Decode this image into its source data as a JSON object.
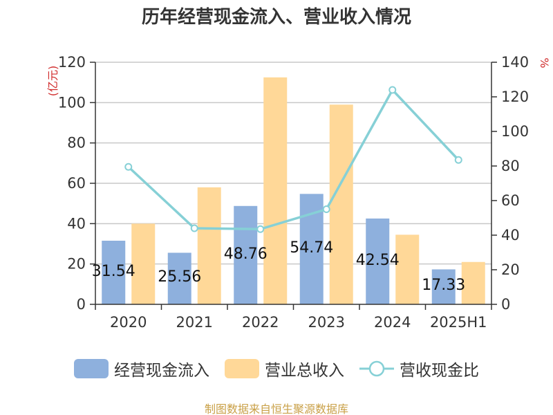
{
  "title": "历年经营现金流入、营业收入情况",
  "source": "制图数据来自恒生聚源数据库",
  "colors": {
    "cash_inflow": "#8eb0dd",
    "revenue": "#ffd898",
    "ratio": "#86d0d6",
    "axis": "#333333",
    "grid": "#c8c8c8",
    "unit": "#d02a2a"
  },
  "chart_data": {
    "type": "bar",
    "categories": [
      "2020",
      "2021",
      "2022",
      "2023",
      "2024",
      "2025H1"
    ],
    "y_left": {
      "unit": "(亿元)",
      "ylim": [
        0,
        120
      ],
      "ticks": [
        "0",
        "20",
        "40",
        "60",
        "80",
        "100",
        "120"
      ]
    },
    "y_right": {
      "unit": "%",
      "ylim": [
        0,
        140
      ],
      "ticks": [
        "0",
        "20",
        "40",
        "60",
        "80",
        "100",
        "120",
        "140"
      ]
    },
    "grid": true,
    "legend_position": "bottom",
    "series": [
      {
        "name": "经营现金流入",
        "type": "bar",
        "axis": "left",
        "values": [
          31.54,
          25.56,
          48.76,
          54.74,
          42.54,
          17.33
        ],
        "labels": [
          "31.54",
          "25.56",
          "48.76",
          "54.74",
          "42.54",
          "17.33"
        ]
      },
      {
        "name": "营业总收入",
        "type": "bar",
        "axis": "left",
        "values": [
          40.0,
          58.0,
          112.5,
          99.0,
          34.5,
          21.0
        ]
      },
      {
        "name": "营收现金比",
        "type": "line",
        "axis": "right",
        "values": [
          79.5,
          44.0,
          43.5,
          55.0,
          124.0,
          83.5
        ]
      }
    ]
  }
}
